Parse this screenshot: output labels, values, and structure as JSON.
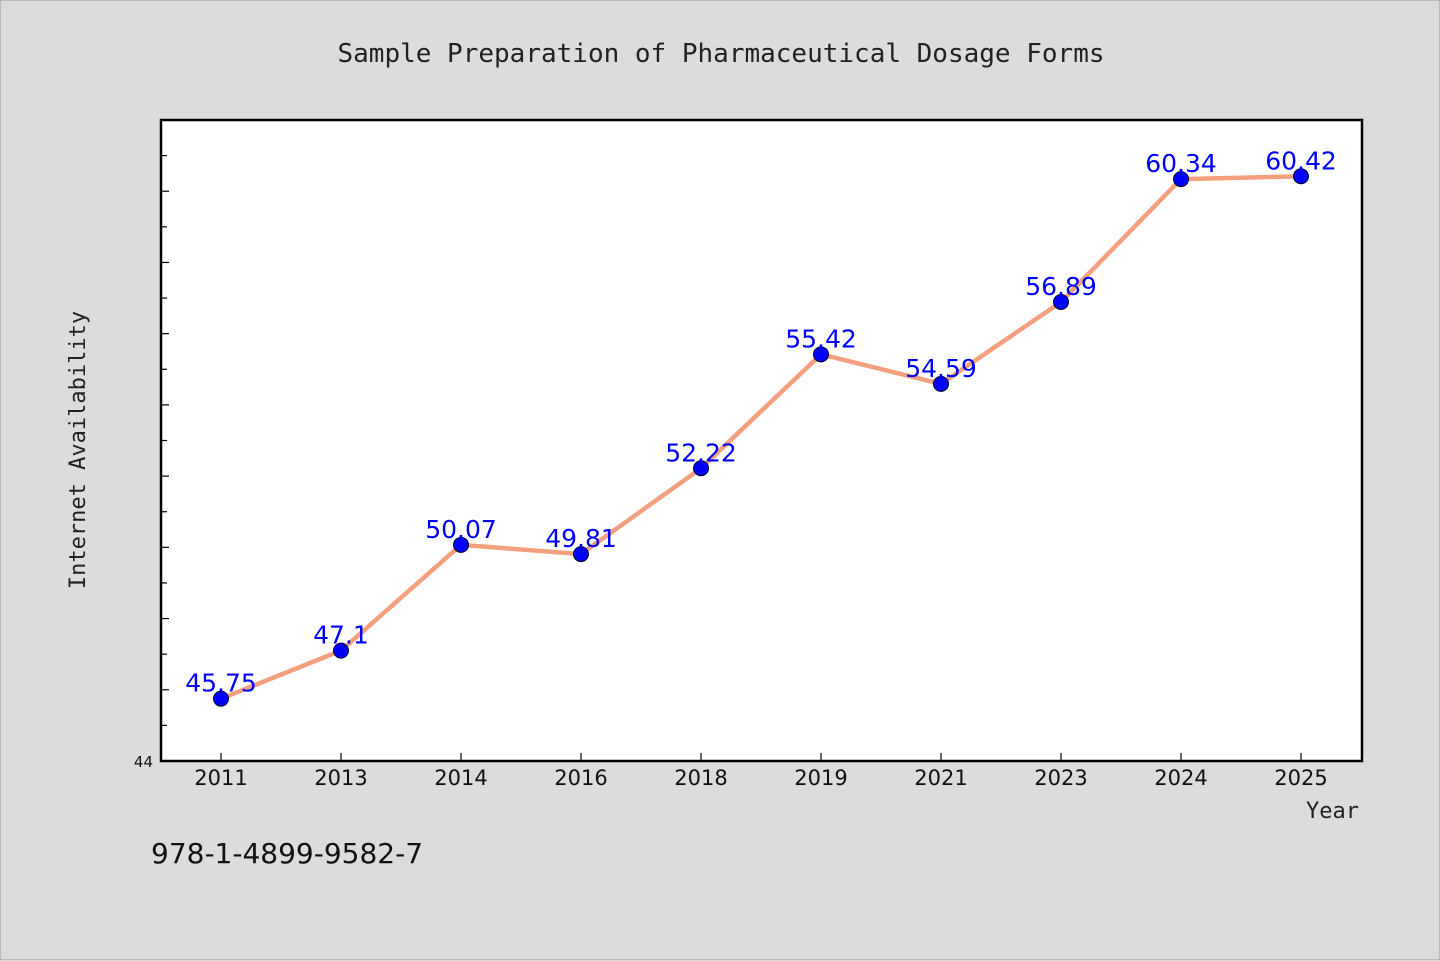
{
  "chart_data": {
    "type": "line",
    "title": "Sample Preparation of Pharmaceutical Dosage Forms",
    "xlabel": "Year",
    "ylabel": "Internet Availability",
    "categories": [
      "2011",
      "2013",
      "2014",
      "2016",
      "2018",
      "2019",
      "2021",
      "2023",
      "2024",
      "2025"
    ],
    "values": [
      45.75,
      47.1,
      50.07,
      49.81,
      52.22,
      55.42,
      54.59,
      56.89,
      60.34,
      60.42
    ],
    "data_labels": [
      "45.75",
      "47.1",
      "50.07",
      "49.81",
      "52.22",
      "55.42",
      "54.59",
      "56.89",
      "60.34",
      "60.42"
    ],
    "ylim": [
      44,
      62
    ],
    "y_tick_label_shown": "44",
    "line_color": "#f4a07e",
    "marker_color": "#0000ff",
    "label_color": "#0000ff",
    "grid": false,
    "legend": "none"
  },
  "footer": {
    "isbn": "978-1-4899-9582-7"
  }
}
